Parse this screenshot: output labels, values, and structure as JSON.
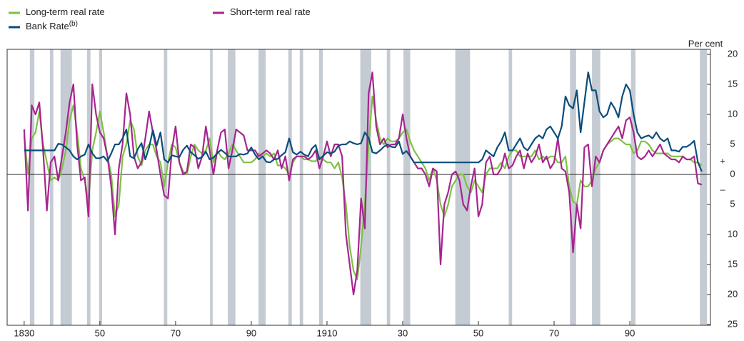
{
  "chart_data": {
    "type": "line",
    "y_unit_label": "Per cent",
    "sign_labels": {
      "plus": "+",
      "minus": "–"
    },
    "x": [
      1830,
      1831,
      1832,
      1833,
      1834,
      1835,
      1836,
      1837,
      1838,
      1839,
      1840,
      1841,
      1842,
      1843,
      1844,
      1845,
      1846,
      1847,
      1848,
      1849,
      1850,
      1851,
      1852,
      1853,
      1854,
      1855,
      1856,
      1857,
      1858,
      1859,
      1860,
      1861,
      1862,
      1863,
      1864,
      1865,
      1866,
      1867,
      1868,
      1869,
      1870,
      1871,
      1872,
      1873,
      1874,
      1875,
      1876,
      1877,
      1878,
      1879,
      1880,
      1881,
      1882,
      1883,
      1884,
      1885,
      1886,
      1887,
      1888,
      1889,
      1890,
      1891,
      1892,
      1893,
      1894,
      1895,
      1896,
      1897,
      1898,
      1899,
      1900,
      1901,
      1902,
      1903,
      1904,
      1905,
      1906,
      1907,
      1908,
      1909,
      1910,
      1911,
      1912,
      1913,
      1914,
      1915,
      1916,
      1917,
      1918,
      1919,
      1920,
      1921,
      1922,
      1923,
      1924,
      1925,
      1926,
      1927,
      1928,
      1929,
      1930,
      1931,
      1932,
      1933,
      1934,
      1935,
      1936,
      1937,
      1938,
      1939,
      1940,
      1941,
      1942,
      1943,
      1944,
      1945,
      1946,
      1947,
      1948,
      1949,
      1950,
      1951,
      1952,
      1953,
      1954,
      1955,
      1956,
      1957,
      1958,
      1959,
      1960,
      1961,
      1962,
      1963,
      1964,
      1965,
      1966,
      1967,
      1968,
      1969,
      1970,
      1971,
      1972,
      1973,
      1974,
      1975,
      1976,
      1977,
      1978,
      1979,
      1980,
      1981,
      1982,
      1983,
      1984,
      1985,
      1986,
      1987,
      1988,
      1989,
      1990,
      1991,
      1992,
      1993,
      1994,
      1995,
      1996,
      1997,
      1998,
      1999,
      2000,
      2001,
      2002,
      2003,
      2004,
      2005,
      2006,
      2007,
      2008,
      2009
    ],
    "series": [
      {
        "name": "Long-term real rate",
        "color": "#7dc243",
        "values": [
          6.5,
          0,
          6,
          7,
          10.5,
          5,
          2,
          -1,
          -0.5,
          -1,
          1,
          4,
          9,
          11.5,
          7,
          1,
          -1,
          -4.5,
          4,
          7,
          10.5,
          7,
          3,
          0,
          -7,
          -5,
          3,
          5,
          9,
          7.5,
          3,
          1.5,
          4,
          5,
          5,
          3,
          2,
          -2,
          2,
          5,
          4.5,
          2,
          0.5,
          0,
          3,
          5,
          4,
          3.5,
          4,
          6,
          2,
          4,
          3,
          2.5,
          3.5,
          5,
          4,
          3,
          2,
          2,
          2,
          2.5,
          3.5,
          3,
          3.5,
          3,
          3.5,
          1.5,
          1.5,
          1,
          0,
          2,
          3,
          3,
          2.5,
          2.5,
          2.2,
          2.2,
          3,
          2.5,
          2,
          2,
          1,
          2,
          -0.5,
          -5,
          -12,
          -16,
          -17.5,
          -12,
          -5,
          5,
          13,
          9,
          6,
          5,
          6,
          5.5,
          5.5,
          6,
          7,
          7.5,
          5.5,
          4,
          3,
          2,
          1,
          -1,
          1,
          -1,
          -5,
          -7,
          -5,
          -2,
          -1,
          0,
          0,
          -2,
          -3,
          -1,
          -2,
          -3,
          0,
          1,
          1,
          1,
          2,
          1,
          3,
          4,
          4,
          3,
          3,
          3,
          3,
          4,
          2.5,
          3,
          2.5,
          3,
          3,
          2,
          2,
          3,
          -2,
          -4.5,
          -5,
          -1,
          -2,
          -2,
          -1,
          1,
          2,
          4,
          5,
          5.5,
          6,
          6,
          5.5,
          5,
          5,
          3.5,
          4,
          5.5,
          5.5,
          5,
          4,
          3.5,
          3.5,
          3.5,
          3.5,
          3,
          3,
          3,
          3,
          2.5,
          2.5,
          2,
          2,
          1.5
        ]
      },
      {
        "name": "Short-term real rate",
        "color": "#a6258f",
        "values": [
          7.5,
          -6,
          11.5,
          10,
          12,
          4,
          -6,
          2,
          3,
          -1,
          3,
          7,
          12,
          15,
          5,
          -1,
          -0.5,
          -7,
          15,
          10,
          7,
          6,
          3,
          -2,
          -10,
          1,
          5,
          13.5,
          10,
          3,
          1,
          2,
          6,
          10.5,
          7,
          4,
          0,
          -3.5,
          -4,
          4,
          8,
          2,
          0,
          0.5,
          5,
          4.5,
          1,
          3,
          8,
          4,
          0,
          4,
          7,
          7.5,
          1,
          4,
          7.5,
          7,
          6.5,
          4,
          4,
          4,
          3,
          3.5,
          4,
          3.5,
          2.5,
          4,
          1,
          3,
          -1,
          2.5,
          3,
          3,
          3,
          2.5,
          3,
          4,
          1,
          3,
          5.5,
          3,
          5,
          5,
          3,
          -10,
          -15,
          -20,
          -16,
          -4,
          -9,
          13.5,
          17,
          8,
          5,
          6,
          4.5,
          5,
          5,
          6,
          10,
          6,
          3,
          2,
          1,
          1,
          0,
          -2,
          1,
          0.5,
          -15,
          -5,
          -3,
          0,
          0.5,
          -1,
          -5,
          -6,
          -2,
          1,
          -7,
          -5,
          2,
          3,
          0,
          0,
          1,
          3.5,
          1,
          1.5,
          3,
          4,
          1,
          3.5,
          2,
          3,
          5,
          2,
          3,
          1,
          2,
          6,
          1,
          0.5,
          -3,
          -13,
          -5,
          -9,
          4.5,
          5,
          -2,
          3,
          2,
          4,
          5,
          6,
          7,
          8,
          6,
          9,
          9.5,
          7,
          3,
          2.5,
          3,
          4,
          3,
          4,
          5,
          3.5,
          3,
          2.5,
          2.5,
          2,
          3,
          2.5,
          2.5,
          3,
          -1.5,
          -1.7
        ]
      },
      {
        "name": "Bank Rate",
        "footnote_marker": "(b)",
        "color": "#0b4d7c",
        "values": [
          4,
          4,
          4,
          4,
          4,
          4,
          4,
          4,
          4,
          5.1,
          5,
          4.5,
          4,
          3,
          2.5,
          3,
          3.3,
          5,
          3.5,
          2.7,
          2.7,
          3,
          2.2,
          3.5,
          5,
          5,
          6,
          7.5,
          3,
          2.7,
          4.2,
          5.2,
          2.5,
          4.5,
          7.4,
          4.8,
          7,
          2.5,
          2,
          3.2,
          3,
          2.9,
          4.1,
          4.8,
          3.7,
          3.2,
          2.6,
          2.9,
          3.8,
          2.5,
          2.8,
          3.5,
          4.1,
          3.6,
          3,
          3,
          3,
          3.4,
          3.3,
          3.5,
          4.5,
          3.3,
          2.5,
          3,
          2.1,
          2,
          2.5,
          2.6,
          3.2,
          3.7,
          6,
          3.7,
          3.3,
          3.8,
          3.3,
          3,
          4.3,
          4.9,
          2.5,
          3.1,
          3.7,
          3.5,
          3.8,
          4.8,
          5,
          5,
          5.5,
          5.2,
          5,
          5.2,
          7,
          6.1,
          3.7,
          3.5,
          4,
          4.6,
          5,
          4.6,
          4.5,
          5.5,
          3.4,
          3.9,
          3,
          2,
          2,
          2,
          2,
          2,
          2,
          2,
          2,
          2,
          2,
          2,
          2,
          2,
          2,
          2,
          2,
          2,
          2,
          2.5,
          4,
          3.5,
          3,
          4.5,
          5.5,
          7,
          4,
          4,
          5,
          6,
          4.5,
          4,
          5,
          6,
          6.5,
          6,
          7.5,
          8,
          7,
          6,
          8,
          13,
          11.5,
          11,
          14,
          7,
          12,
          17,
          14,
          14,
          10.5,
          9.5,
          10,
          12,
          11,
          9.5,
          13,
          15,
          14,
          10,
          7,
          6,
          6.3,
          6.5,
          6,
          7,
          6,
          5.5,
          6,
          4,
          4,
          3.8,
          4.6,
          4.6,
          5,
          5.6,
          2,
          0.5
        ]
      }
    ],
    "shaded_periods": [
      [
        1831.5,
        1832.7
      ],
      [
        1836.8,
        1837.7
      ],
      [
        1839.6,
        1842.6
      ],
      [
        1846.6,
        1847.5
      ],
      [
        1849.8,
        1850.6
      ],
      [
        1866.9,
        1867.8
      ],
      [
        1879.1,
        1879.8
      ],
      [
        1883.8,
        1885.8
      ],
      [
        1891.9,
        1893.8
      ],
      [
        1899.8,
        1900.7
      ],
      [
        1902.8,
        1903.7
      ],
      [
        1907.9,
        1908.9
      ],
      [
        1918.8,
        1921.7
      ],
      [
        1925.8,
        1926.7
      ],
      [
        1930.2,
        1932
      ],
      [
        1943.9,
        1947.8
      ],
      [
        1958,
        1958.9
      ],
      [
        1974.2,
        1975.8
      ],
      [
        1980,
        1982.2
      ],
      [
        1990.3,
        1991.5
      ],
      [
        2008.5,
        2010.4
      ]
    ],
    "shade_color": "#c5cbd2",
    "xlim": [
      1825.5,
      2011.3
    ],
    "ylim": [
      -25,
      20
    ],
    "xticks": [
      1830,
      {
        "value": 1850,
        "label": "50"
      },
      {
        "value": 1870,
        "label": "70"
      },
      {
        "value": 1890,
        "label": "90"
      },
      1910,
      {
        "value": 1930,
        "label": "30"
      },
      {
        "value": 1950,
        "label": "50"
      },
      {
        "value": 1970,
        "label": "70"
      },
      {
        "value": 1990,
        "label": "90"
      }
    ],
    "yticks": [
      {
        "value": -25,
        "label": "25"
      },
      {
        "value": -20,
        "label": "20"
      },
      {
        "value": -15,
        "label": "15"
      },
      {
        "value": -10,
        "label": "10"
      },
      {
        "value": -5,
        "label": "5"
      },
      0,
      5,
      10,
      15,
      20
    ],
    "grid": false,
    "legend_position": "top-left"
  }
}
